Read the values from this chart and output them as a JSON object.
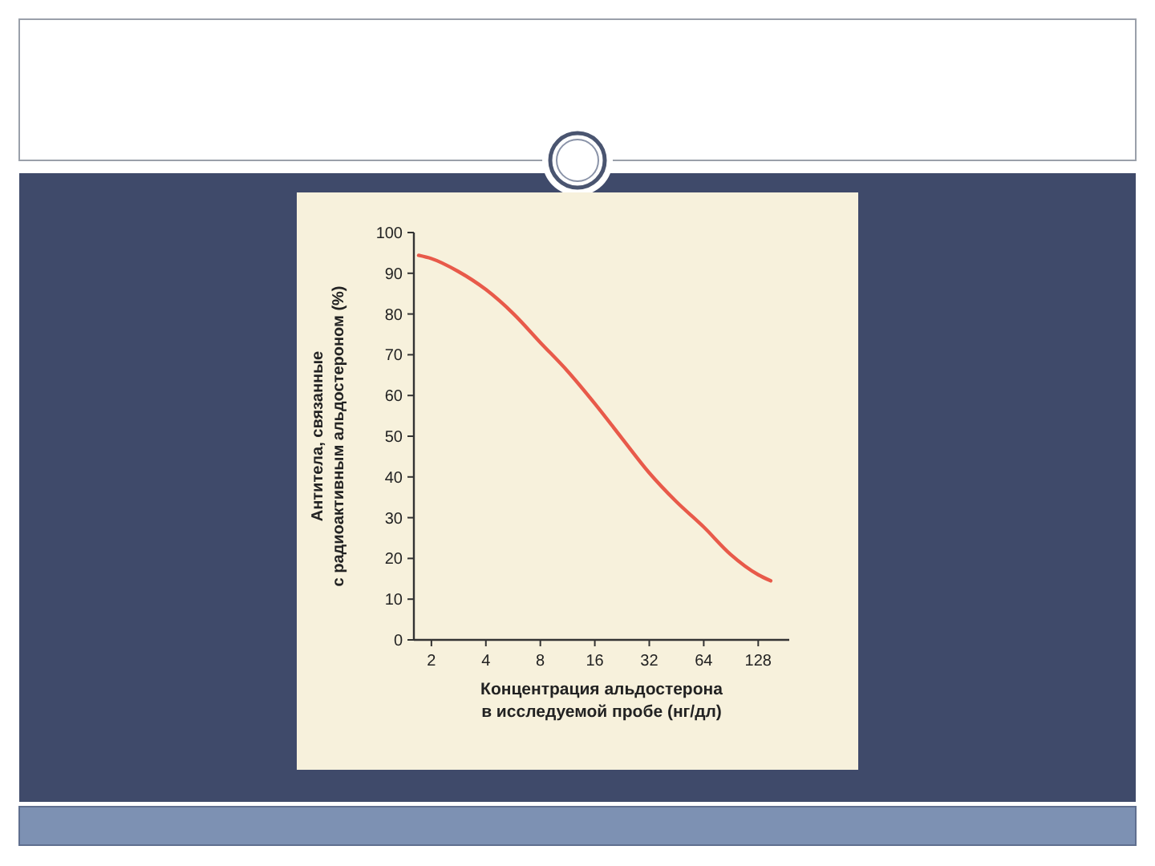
{
  "chart_data": {
    "type": "line",
    "ylabel": "Антитела, связанные\nс радиоактивным альдостероном (%)",
    "xlabel": "Концентрация альдостерона\nв исследуемой пробе (нг/дл)",
    "log": "x",
    "xlim": [
      1.6,
      190
    ],
    "xticks": [
      2,
      4,
      8,
      16,
      32,
      64,
      128
    ],
    "ylim": [
      0,
      100
    ],
    "yticks": [
      0,
      10,
      20,
      30,
      40,
      50,
      60,
      70,
      80,
      90,
      100
    ],
    "grid": false,
    "marker": "none",
    "line_style": "solid",
    "series": [
      {
        "color": "#e85a4a",
        "x": [
          1.7,
          2,
          2.8,
          4,
          5.7,
          8,
          11.3,
          16,
          22.6,
          32,
          45,
          64,
          90,
          128,
          150
        ],
        "values": [
          94.4,
          93.6,
          90.5,
          86,
          80,
          73,
          66,
          58,
          49.5,
          41,
          34,
          27.7,
          21,
          16,
          14.5
        ]
      }
    ]
  }
}
